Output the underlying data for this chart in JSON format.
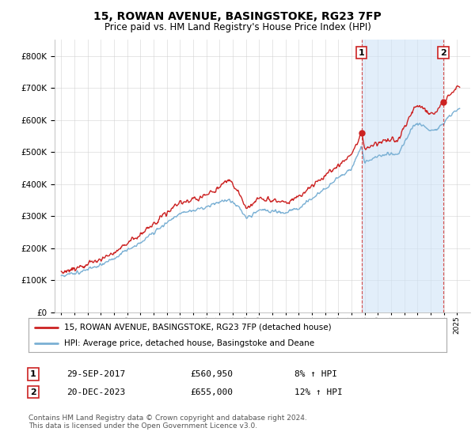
{
  "title": "15, ROWAN AVENUE, BASINGSTOKE, RG23 7FP",
  "subtitle": "Price paid vs. HM Land Registry's House Price Index (HPI)",
  "legend_label_red": "15, ROWAN AVENUE, BASINGSTOKE, RG23 7FP (detached house)",
  "legend_label_blue": "HPI: Average price, detached house, Basingstoke and Deane",
  "annotation1_date": "29-SEP-2017",
  "annotation1_price": "£560,950",
  "annotation1_hpi": "8% ↑ HPI",
  "annotation2_date": "20-DEC-2023",
  "annotation2_price": "£655,000",
  "annotation2_hpi": "12% ↑ HPI",
  "footnote": "Contains HM Land Registry data © Crown copyright and database right 2024.\nThis data is licensed under the Open Government Licence v3.0.",
  "red_color": "#cc2222",
  "blue_color": "#7ab0d4",
  "shade_color": "#d0e4f7",
  "bg_color": "#ffffff",
  "grid_color": "#cccccc",
  "ylim": [
    0,
    850000
  ],
  "yticks": [
    0,
    100000,
    200000,
    300000,
    400000,
    500000,
    600000,
    700000,
    800000
  ],
  "sale1_x_year": 2017.75,
  "sale1_y": 560950,
  "sale2_x_year": 2023.96,
  "sale2_y": 655000,
  "xlim_start": 1994.5,
  "xlim_end": 2026.0
}
